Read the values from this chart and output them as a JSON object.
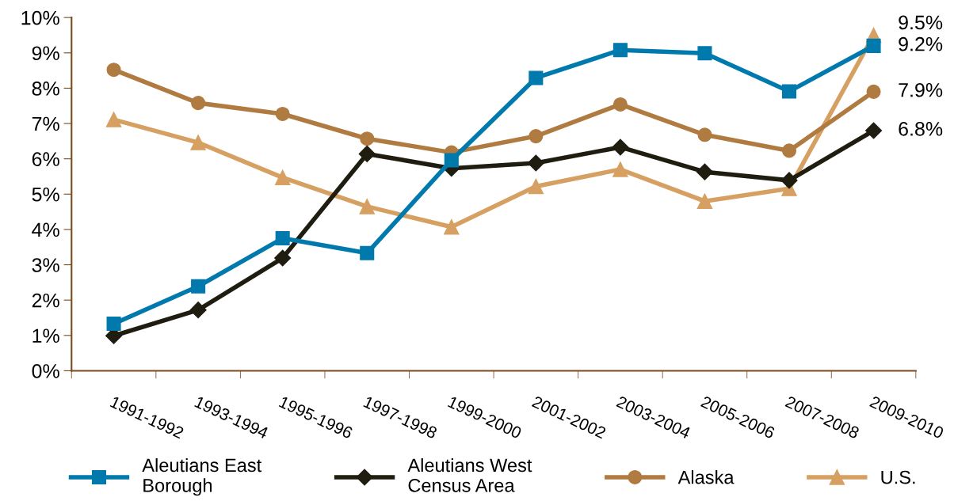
{
  "chart_data": {
    "type": "line",
    "categories": [
      "1991-1992",
      "1993-1994",
      "1995-1996",
      "1997-1998",
      "1999-2000",
      "2001-2002",
      "2003-2004",
      "2005-2006",
      "2007-2008",
      "2009-2010"
    ],
    "series": [
      {
        "name": "Aleutians East\nBorough",
        "color": "#0079ad",
        "marker": "square",
        "values": [
          1.33,
          2.39,
          3.75,
          3.33,
          5.96,
          8.29,
          9.08,
          8.99,
          7.91,
          9.2
        ],
        "value_labels": [
          null,
          null,
          null,
          null,
          null,
          null,
          null,
          null,
          null,
          "9.2%"
        ]
      },
      {
        "name": "Aleutians West\nCensus Area",
        "color": "#1f1c10",
        "marker": "diamond",
        "values": [
          0.99,
          1.72,
          3.19,
          6.14,
          5.73,
          5.88,
          6.33,
          5.63,
          5.39,
          6.8
        ],
        "value_labels": [
          null,
          null,
          null,
          null,
          null,
          null,
          null,
          null,
          null,
          "6.8%"
        ]
      },
      {
        "name": "Alaska",
        "color": "#b07b40",
        "marker": "circle",
        "values": [
          8.52,
          7.58,
          7.27,
          6.57,
          6.18,
          6.64,
          7.54,
          6.68,
          6.23,
          7.9
        ],
        "value_labels": [
          null,
          null,
          null,
          null,
          null,
          null,
          null,
          null,
          null,
          "7.9%"
        ]
      },
      {
        "name": "U.S.",
        "color": "#d6a062",
        "marker": "triangle",
        "values": [
          7.11,
          6.46,
          5.47,
          4.65,
          4.07,
          5.22,
          5.7,
          4.8,
          5.16,
          9.5
        ],
        "value_labels": [
          null,
          null,
          null,
          null,
          null,
          null,
          null,
          null,
          null,
          "9.5%"
        ]
      }
    ],
    "ylim": [
      0,
      10
    ],
    "yticks": [
      {
        "value": 0,
        "label": "0%"
      },
      {
        "value": 1,
        "label": "1%"
      },
      {
        "value": 2,
        "label": "2%"
      },
      {
        "value": 3,
        "label": "3%"
      },
      {
        "value": 4,
        "label": "4%"
      },
      {
        "value": 5,
        "label": "5%"
      },
      {
        "value": 6,
        "label": "6%"
      },
      {
        "value": 7,
        "label": "7%"
      },
      {
        "value": 8,
        "label": "8%"
      },
      {
        "value": 9,
        "label": "9%"
      },
      {
        "value": 10,
        "label": "10%"
      }
    ],
    "grid": false,
    "legend": "bottom",
    "line_style": "solid"
  }
}
